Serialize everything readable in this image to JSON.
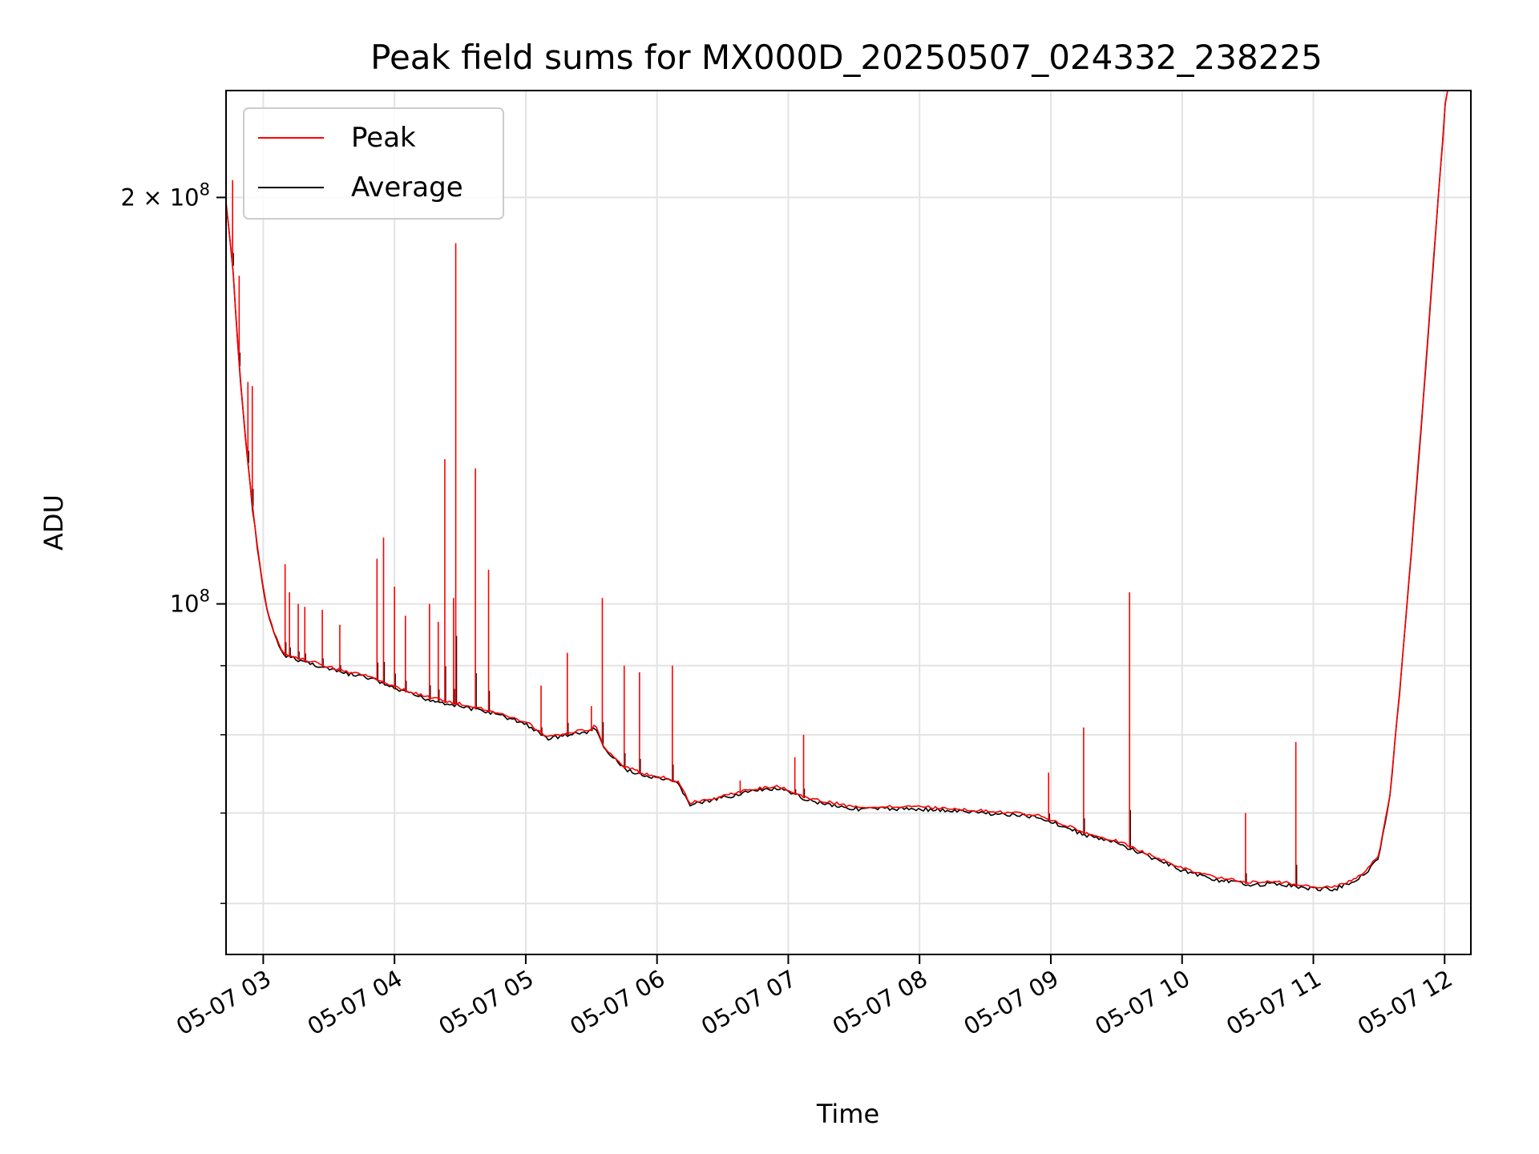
{
  "chart_data": {
    "type": "line",
    "title": "Peak field sums for MX000D_20250507_024332_238225",
    "xlabel": "Time",
    "ylabel": "ADU",
    "yscale": "log",
    "ylim": [
      55000000,
      240000000
    ],
    "xlim": [
      "2025-05-07 02:43",
      "2025-05-07 12:12"
    ],
    "grid": true,
    "legend_position": "upper left",
    "x_ticks": [
      "05-07 03",
      "05-07 04",
      "05-07 05",
      "05-07 06",
      "05-07 07",
      "05-07 08",
      "05-07 09",
      "05-07 10",
      "05-07 11",
      "05-07 12"
    ],
    "x_tick_times": [
      "2025-05-07 03:00",
      "2025-05-07 04:00",
      "2025-05-07 05:00",
      "2025-05-07 06:00",
      "2025-05-07 07:00",
      "2025-05-07 08:00",
      "2025-05-07 09:00",
      "2025-05-07 10:00",
      "2025-05-07 11:00",
      "2025-05-07 12:00"
    ],
    "y_major_ticks": [
      {
        "value": 100000000,
        "base": "10",
        "exp": "8"
      },
      {
        "value": 200000000,
        "base": "2 × 10",
        "exp": "8"
      }
    ],
    "y_minor_ticks": [
      60000000,
      70000000,
      80000000,
      90000000
    ],
    "series": [
      {
        "name": "Average",
        "color": "#000000",
        "x": [
          "2025-05-07 02:43",
          "2025-05-07 02:46",
          "2025-05-07 02:49",
          "2025-05-07 02:52",
          "2025-05-07 02:55",
          "2025-05-07 02:58",
          "2025-05-07 03:01",
          "2025-05-07 03:04",
          "2025-05-07 03:07",
          "2025-05-07 03:10",
          "2025-05-07 03:15",
          "2025-05-07 03:25",
          "2025-05-07 03:35",
          "2025-05-07 03:50",
          "2025-05-07 04:00",
          "2025-05-07 04:15",
          "2025-05-07 04:30",
          "2025-05-07 04:45",
          "2025-05-07 05:00",
          "2025-05-07 05:07",
          "2025-05-07 05:10",
          "2025-05-07 05:20",
          "2025-05-07 05:30",
          "2025-05-07 05:32",
          "2025-05-07 05:36",
          "2025-05-07 05:45",
          "2025-05-07 05:55",
          "2025-05-07 06:05",
          "2025-05-07 06:10",
          "2025-05-07 06:15",
          "2025-05-07 06:25",
          "2025-05-07 06:40",
          "2025-05-07 06:55",
          "2025-05-07 07:10",
          "2025-05-07 07:30",
          "2025-05-07 08:00",
          "2025-05-07 08:30",
          "2025-05-07 08:55",
          "2025-05-07 09:05",
          "2025-05-07 09:15",
          "2025-05-07 09:30",
          "2025-05-07 09:45",
          "2025-05-07 10:00",
          "2025-05-07 10:15",
          "2025-05-07 10:30",
          "2025-05-07 10:45",
          "2025-05-07 11:00",
          "2025-05-07 11:10",
          "2025-05-07 11:15",
          "2025-05-07 11:20",
          "2025-05-07 11:25",
          "2025-05-07 11:30",
          "2025-05-07 11:35",
          "2025-05-07 11:40",
          "2025-05-07 11:45",
          "2025-05-07 11:50",
          "2025-05-07 11:55",
          "2025-05-07 12:00",
          "2025-05-07 12:01"
        ],
        "y": [
          198000000,
          178000000,
          150000000,
          132000000,
          118000000,
          108000000,
          100000000,
          96000000,
          93000000,
          91500000,
          91000000,
          90000000,
          89000000,
          88000000,
          86500000,
          85000000,
          84000000,
          83000000,
          81500000,
          80000000,
          79500000,
          80000000,
          80500000,
          81000000,
          78000000,
          75500000,
          74500000,
          74000000,
          73500000,
          71000000,
          71500000,
          72500000,
          73000000,
          71500000,
          70500000,
          70500000,
          70000000,
          69500000,
          68500000,
          67500000,
          66500000,
          65000000,
          63500000,
          62500000,
          62000000,
          62000000,
          61500000,
          61500000,
          62000000,
          62500000,
          63500000,
          65000000,
          72000000,
          88000000,
          110000000,
          140000000,
          180000000,
          230000000,
          245000000
        ]
      },
      {
        "name": "Peak",
        "color": "#ff0000",
        "spikes": [
          {
            "t": "2025-05-07 02:46",
            "y": 206000000
          },
          {
            "t": "2025-05-07 02:49",
            "y": 175000000
          },
          {
            "t": "2025-05-07 02:53",
            "y": 146000000
          },
          {
            "t": "2025-05-07 02:55",
            "y": 145000000
          },
          {
            "t": "2025-05-07 03:10",
            "y": 107000000
          },
          {
            "t": "2025-05-07 03:12",
            "y": 102000000
          },
          {
            "t": "2025-05-07 03:16",
            "y": 100000000
          },
          {
            "t": "2025-05-07 03:19",
            "y": 99500000
          },
          {
            "t": "2025-05-07 03:27",
            "y": 99000000
          },
          {
            "t": "2025-05-07 03:35",
            "y": 96500000
          },
          {
            "t": "2025-05-07 03:52",
            "y": 108000000
          },
          {
            "t": "2025-05-07 03:55",
            "y": 112000000
          },
          {
            "t": "2025-05-07 04:00",
            "y": 103000000
          },
          {
            "t": "2025-05-07 04:05",
            "y": 98000000
          },
          {
            "t": "2025-05-07 04:16",
            "y": 100000000
          },
          {
            "t": "2025-05-07 04:20",
            "y": 97000000
          },
          {
            "t": "2025-05-07 04:23",
            "y": 128000000
          },
          {
            "t": "2025-05-07 04:27",
            "y": 101000000
          },
          {
            "t": "2025-05-07 04:28",
            "y": 185000000
          },
          {
            "t": "2025-05-07 04:37",
            "y": 126000000
          },
          {
            "t": "2025-05-07 04:43",
            "y": 106000000
          },
          {
            "t": "2025-05-07 05:07",
            "y": 87000000
          },
          {
            "t": "2025-05-07 05:19",
            "y": 92000000
          },
          {
            "t": "2025-05-07 05:30",
            "y": 84000000
          },
          {
            "t": "2025-05-07 05:35",
            "y": 101000000
          },
          {
            "t": "2025-05-07 05:45",
            "y": 90000000
          },
          {
            "t": "2025-05-07 05:52",
            "y": 89000000
          },
          {
            "t": "2025-05-07 06:07",
            "y": 90000000
          },
          {
            "t": "2025-05-07 06:38",
            "y": 74000000
          },
          {
            "t": "2025-05-07 07:03",
            "y": 77000000
          },
          {
            "t": "2025-05-07 07:07",
            "y": 80000000
          },
          {
            "t": "2025-05-07 08:59",
            "y": 75000000
          },
          {
            "t": "2025-05-07 09:15",
            "y": 81000000
          },
          {
            "t": "2025-05-07 09:36",
            "y": 102000000
          },
          {
            "t": "2025-05-07 10:29",
            "y": 70000000
          },
          {
            "t": "2025-05-07 10:52",
            "y": 79000000
          }
        ]
      }
    ]
  }
}
